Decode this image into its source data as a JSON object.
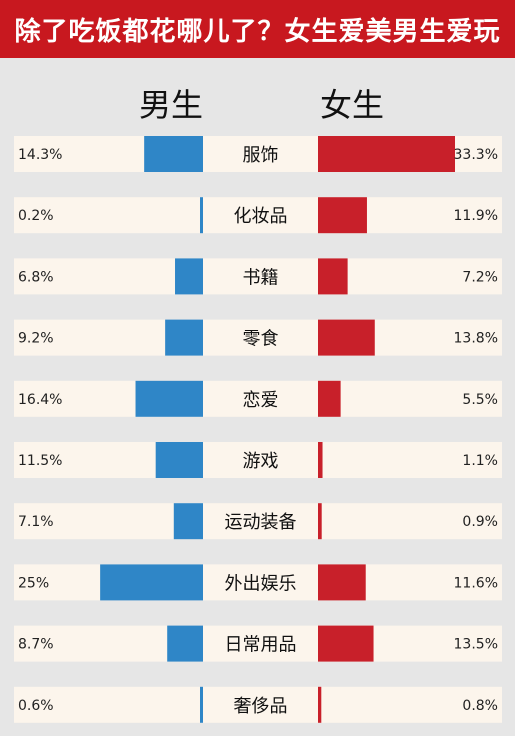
{
  "title": "除了吃饭都花哪儿了？女生爱美男生爱玩",
  "headers": {
    "men": "男生",
    "women": "女生"
  },
  "colors": {
    "banner": "#c8181f",
    "men_bar": "#2f86c7",
    "women_bar": "#c8202a",
    "row_bg": "#fcf5ec",
    "page_bg": "#e6e6e6"
  },
  "chart_data": {
    "type": "bar",
    "orientation": "horizontal-butterfly",
    "title": "除了吃饭都花哪儿了？女生爱美男生爱玩",
    "categories": [
      "服饰",
      "化妆品",
      "书籍",
      "零食",
      "恋爱",
      "游戏",
      "运动装备",
      "外出娱乐",
      "日常用品",
      "奢侈品"
    ],
    "series": [
      {
        "name": "男生",
        "values": [
          14.3,
          0.2,
          6.8,
          9.2,
          16.4,
          11.5,
          7.1,
          25,
          8.7,
          0.6
        ],
        "labels": [
          "14.3%",
          "0.2%",
          "6.8%",
          "9.2%",
          "16.4%",
          "11.5%",
          "7.1%",
          "25%",
          "8.7%",
          "0.6%"
        ],
        "color": "#2f86c7"
      },
      {
        "name": "女生",
        "values": [
          33.3,
          11.9,
          7.2,
          13.8,
          5.5,
          1.1,
          0.9,
          11.6,
          13.5,
          0.8
        ],
        "labels": [
          "33.3%",
          "11.9%",
          "7.2%",
          "13.8%",
          "5.5%",
          "1.1%",
          "0.9%",
          "11.6%",
          "13.5%",
          "0.8%"
        ],
        "color": "#c8202a"
      }
    ],
    "value_unit": "%",
    "xlim": [
      0,
      33.3
    ],
    "grid": false,
    "legend": "top"
  }
}
